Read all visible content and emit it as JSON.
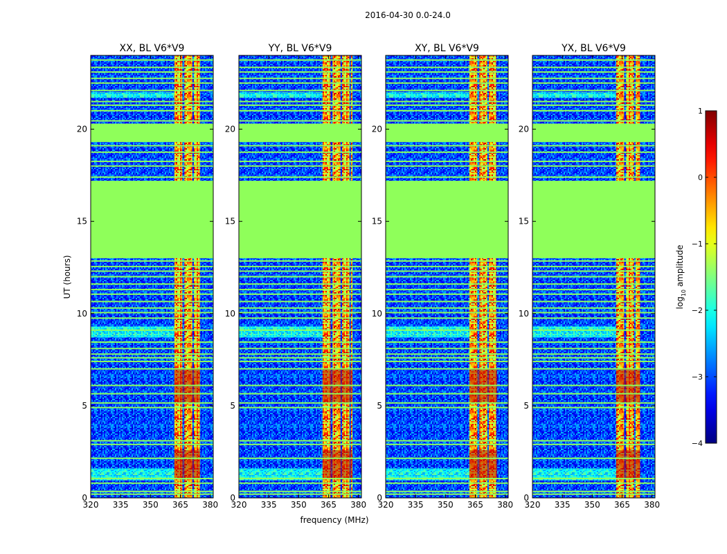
{
  "figure": {
    "suptitle": "2016-04-30 0.0-24.0"
  },
  "chart_data": {
    "type": "heatmap",
    "xlabel": "frequency (MHz)",
    "ylabel": "UT (hours)",
    "xlim": [
      320,
      381.5
    ],
    "ylim": [
      0,
      24
    ],
    "x_ticks": [
      320,
      335,
      350,
      365,
      380
    ],
    "y_ticks": [
      0,
      5,
      10,
      15,
      20
    ],
    "colormap": "jet",
    "missing_color": "#8fff5a",
    "colorbar": {
      "label_prefix": "log",
      "label_subscript": "10",
      "label_suffix": " amplitude",
      "range": [
        -4,
        1
      ],
      "ticks": [
        1,
        0,
        -1,
        -2,
        -3,
        -4
      ]
    },
    "gaps_hours": [
      [
        13.0,
        17.2
      ],
      [
        19.3,
        20.3
      ]
    ],
    "flagged_rows_hours": [
      0.2,
      0.35,
      0.8,
      1.05,
      2.15,
      2.9,
      3.1,
      4.9,
      5.15,
      5.65,
      6.1,
      7.0,
      7.4,
      7.6,
      7.8,
      8.1,
      8.45,
      9.1,
      9.75,
      10.05,
      10.3,
      10.65,
      11.05,
      11.3,
      11.6,
      12.0,
      12.3,
      12.55,
      12.85,
      17.4,
      18.0,
      18.25,
      18.75,
      19.1,
      20.45,
      21.0,
      21.3,
      21.5,
      22.1,
      22.5,
      22.75,
      23.1,
      23.35,
      23.75
    ],
    "rfi_band_mhz": [
      362,
      377
    ],
    "rfi_channel_gaps_mhz": [
      [
        366,
        367
      ],
      [
        371,
        371.8
      ],
      [
        375.5,
        376.2
      ],
      [
        378.2,
        380.4
      ]
    ],
    "panels": [
      {
        "title": "XX, BL V6*V9",
        "rfi_band_mhz": [
          362,
          374.8
        ]
      },
      {
        "title": "YY, BL V6*V9",
        "rfi_band_mhz": [
          362,
          377
        ]
      },
      {
        "title": "XY, BL V6*V9",
        "rfi_band_mhz": [
          362,
          376
        ]
      },
      {
        "title": "YX, BL V6*V9",
        "rfi_band_mhz": [
          362,
          374
        ]
      }
    ]
  }
}
